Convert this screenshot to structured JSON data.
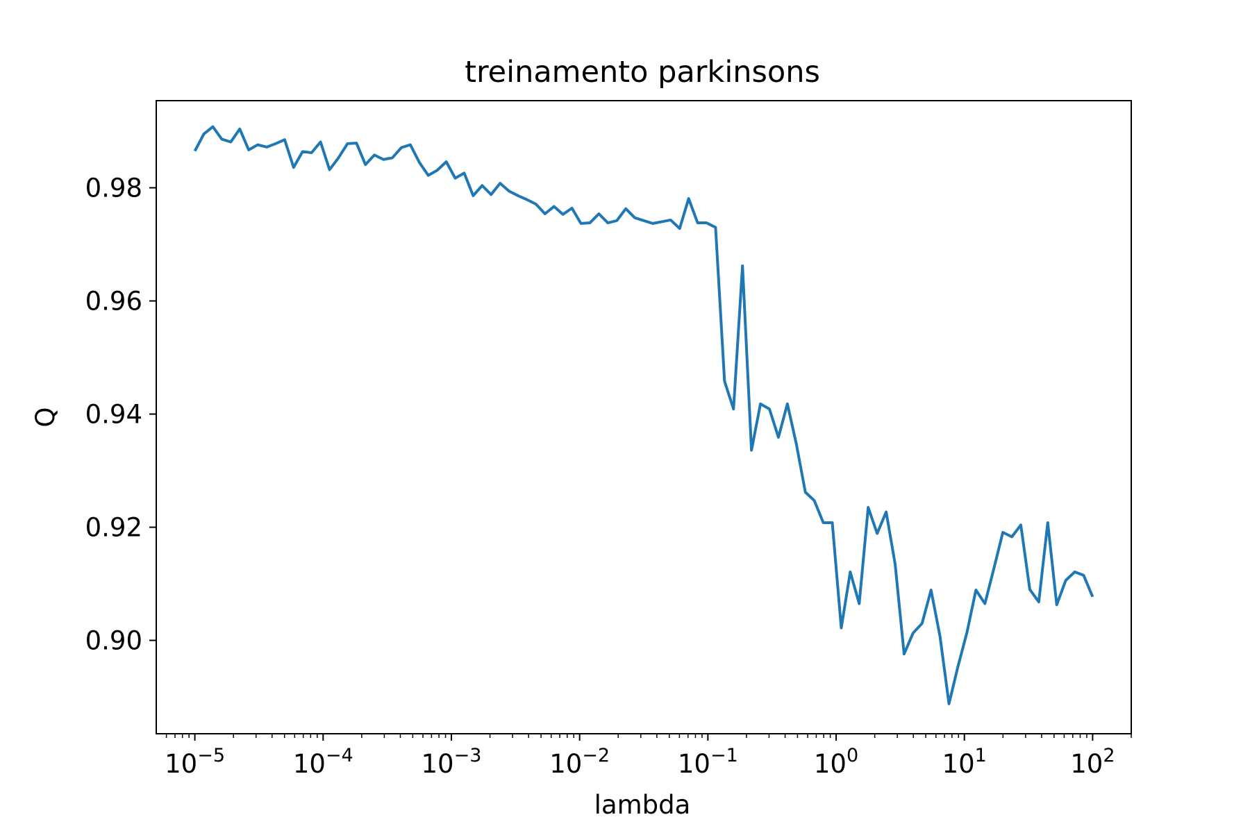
{
  "chart_data": {
    "type": "line",
    "title": "treinamento parkinsons",
    "xlabel": "lambda",
    "ylabel": "Q",
    "x_scale": "log",
    "x_range": [
      1e-05,
      100
    ],
    "xlim": [
      5e-06,
      200
    ],
    "ylim": [
      0.8835,
      0.9954
    ],
    "y_scale": "linear",
    "grid": false,
    "legend": "none",
    "line_color": "#1f77b4",
    "x_ticks": [
      {
        "value": 1e-05,
        "base": "10",
        "exp": "−5"
      },
      {
        "value": 0.0001,
        "base": "10",
        "exp": "−4"
      },
      {
        "value": 0.001,
        "base": "10",
        "exp": "−3"
      },
      {
        "value": 0.01,
        "base": "10",
        "exp": "−2"
      },
      {
        "value": 0.1,
        "base": "10",
        "exp": "−1"
      },
      {
        "value": 1,
        "base": "10",
        "exp": "0"
      },
      {
        "value": 10,
        "base": "10",
        "exp": "1"
      },
      {
        "value": 100,
        "base": "10",
        "exp": "2"
      }
    ],
    "y_ticks": [
      {
        "value": 0.9,
        "label": "0.90"
      },
      {
        "value": 0.92,
        "label": "0.92"
      },
      {
        "value": 0.94,
        "label": "0.94"
      },
      {
        "value": 0.96,
        "label": "0.96"
      },
      {
        "value": 0.98,
        "label": "0.98"
      }
    ],
    "series": [
      {
        "y": [
          0.9865,
          0.9895,
          0.9908,
          0.9886,
          0.9881,
          0.9904,
          0.9867,
          0.9876,
          0.9872,
          0.9878,
          0.9885,
          0.9836,
          0.9864,
          0.9862,
          0.9881,
          0.9832,
          0.9853,
          0.9878,
          0.9879,
          0.9841,
          0.9858,
          0.985,
          0.9853,
          0.9871,
          0.9876,
          0.9845,
          0.9822,
          0.9831,
          0.9846,
          0.9817,
          0.9826,
          0.9786,
          0.9804,
          0.9788,
          0.9808,
          0.9794,
          0.9786,
          0.9779,
          0.9771,
          0.9754,
          0.9767,
          0.9753,
          0.9764,
          0.9737,
          0.9738,
          0.9754,
          0.9738,
          0.9742,
          0.9763,
          0.9747,
          0.9742,
          0.9737,
          0.974,
          0.9743,
          0.9728,
          0.9781,
          0.9738,
          0.9738,
          0.973,
          0.9458,
          0.9409,
          0.9662,
          0.9336,
          0.9418,
          0.9409,
          0.9359,
          0.9418,
          0.9347,
          0.9262,
          0.9247,
          0.9208,
          0.9208,
          0.9022,
          0.9121,
          0.9065,
          0.9235,
          0.9189,
          0.9227,
          0.9135,
          0.8976,
          0.9013,
          0.903,
          0.9089,
          0.9007,
          0.8888,
          0.8954,
          0.9014,
          0.9089,
          0.9065,
          0.9127,
          0.9191,
          0.9183,
          0.9204,
          0.909,
          0.9068,
          0.9208,
          0.9063,
          0.9106,
          0.9121,
          0.9115,
          0.9077
        ]
      }
    ]
  }
}
